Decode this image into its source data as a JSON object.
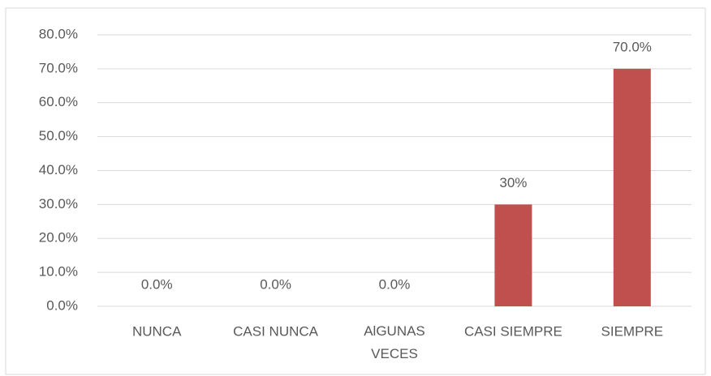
{
  "chart_data": {
    "type": "bar",
    "categories": [
      "NUNCA",
      "CASI NUNCA",
      "AlGUNAS VECES",
      "CASI SIEMPRE",
      "SIEMPRE"
    ],
    "values": [
      0,
      0,
      0,
      30,
      70
    ],
    "value_labels": [
      "0.0%",
      "0.0%",
      "0.0%",
      "30%",
      "70.0%"
    ],
    "color": "#c0504d",
    "ylim": [
      0,
      80
    ],
    "yticks": [
      {
        "value": 0,
        "label": "0.0%"
      },
      {
        "value": 10,
        "label": "10.0%"
      },
      {
        "value": 20,
        "label": "20.0%"
      },
      {
        "value": 30,
        "label": "30.0%"
      },
      {
        "value": 40,
        "label": "40.0%"
      },
      {
        "value": 50,
        "label": "50.0%"
      },
      {
        "value": 60,
        "label": "60.0%"
      },
      {
        "value": 70,
        "label": "70.0%"
      },
      {
        "value": 80,
        "label": "80.0%"
      }
    ],
    "grid": true
  }
}
